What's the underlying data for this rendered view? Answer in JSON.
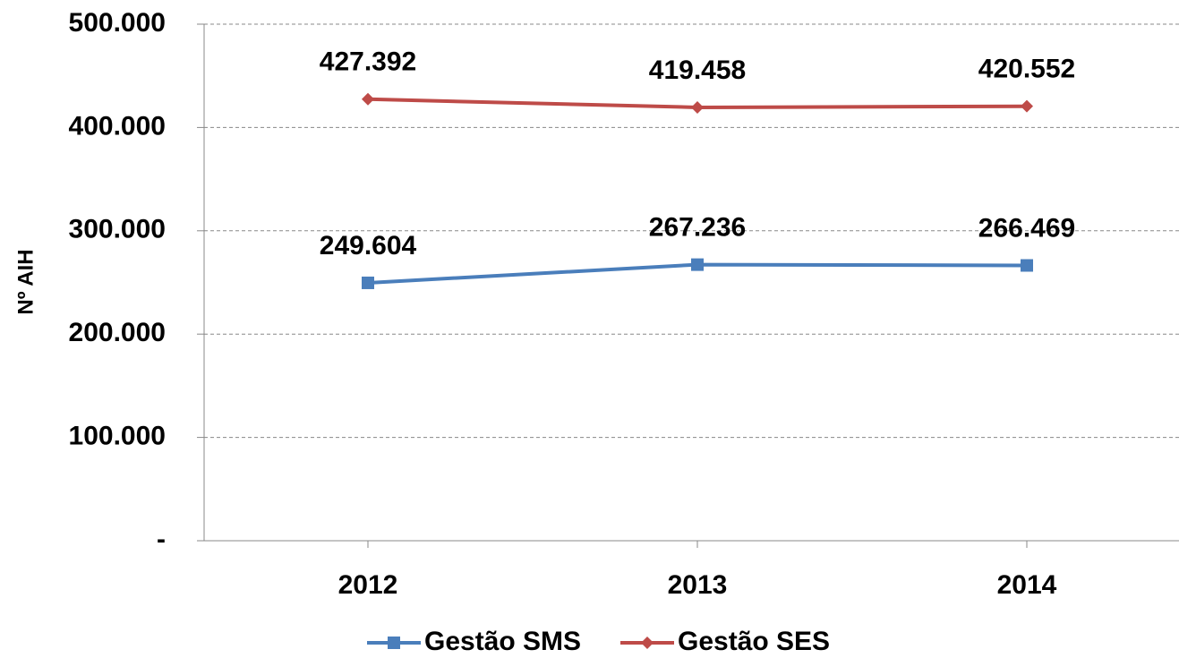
{
  "chart_data": {
    "type": "line",
    "y_label": "Nº AIH",
    "categories": [
      "2012",
      "2013",
      "2014"
    ],
    "series": [
      {
        "name": "Gestão SMS",
        "color": "#4a7ebb",
        "marker": "square",
        "values": [
          249604,
          267236,
          266469
        ],
        "value_labels": [
          "249.604",
          "267.236",
          "266.469"
        ]
      },
      {
        "name": "Gestão SES",
        "color": "#be4b48",
        "marker": "diamond",
        "values": [
          427392,
          419458,
          420552
        ],
        "value_labels": [
          "427.392",
          "419.458",
          "420.552"
        ]
      }
    ],
    "ylim": [
      0,
      500000
    ],
    "yticks": [
      {
        "value": 0,
        "label": "-"
      },
      {
        "value": 100000,
        "label": "100.000"
      },
      {
        "value": 200000,
        "label": "200.000"
      },
      {
        "value": 300000,
        "label": "300.000"
      },
      {
        "value": 400000,
        "label": "400.000"
      },
      {
        "value": 500000,
        "label": "500.000"
      }
    ],
    "grid": true,
    "legend": "bottom"
  }
}
